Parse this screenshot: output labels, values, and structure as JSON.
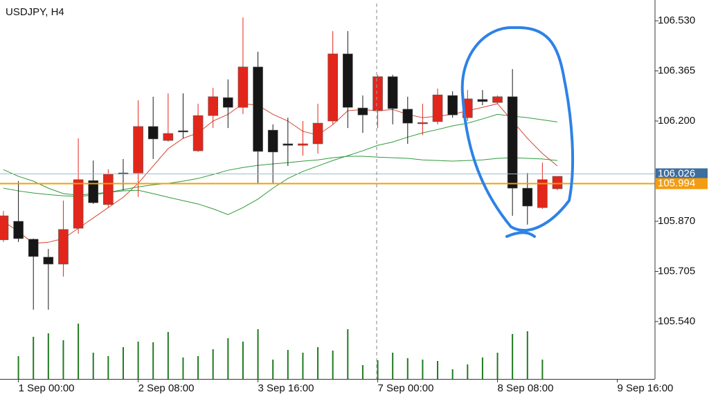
{
  "chart_data": {
    "type": "candlestick",
    "title": "USDJPY, H4",
    "up_color": "#e3261b",
    "down_color": "#161616",
    "xlim": [
      -0.23,
      43.52
    ],
    "xticks": [
      {
        "value": 1,
        "label": "1 Sep 00:00"
      },
      {
        "value": 9,
        "label": "2 Sep 08:00"
      },
      {
        "value": 17,
        "label": "3 Sep 16:00"
      },
      {
        "value": 25,
        "label": "7 Sep 00:00"
      },
      {
        "value": 33,
        "label": "8 Sep 08:00"
      },
      {
        "value": 41,
        "label": "9 Sep 16:00"
      }
    ],
    "ylim": [
      105.351,
      106.587
    ],
    "yticks": [
      {
        "value": 106.53,
        "label": "106.530"
      },
      106.365,
      {
        "value": 106.2,
        "label": "106.200"
      },
      {
        "value": 105.87,
        "label": "105.870"
      },
      105.705,
      {
        "value": 105.54,
        "label": "105.540"
      }
    ],
    "open": [
      105.809,
      105.87,
      105.811,
      105.752,
      105.729,
      105.847,
      106.004,
      105.925,
      106.029,
      106.029,
      106.182,
      106.136,
      106.168,
      106.102,
      106.218,
      106.277,
      106.245,
      106.378,
      106.17,
      106.125,
      106.12,
      106.125,
      106.2,
      106.421,
      106.243,
      106.234,
      106.346,
      106.239,
      106.191,
      106.198,
      106.284,
      106.211,
      106.271,
      106.261,
      106.28,
      105.979,
      105.915,
      105.977
    ],
    "high": [
      105.904,
      106.002,
      105.813,
      105.779,
      105.938,
      106.143,
      106.07,
      106.041,
      106.075,
      106.268,
      106.28,
      106.291,
      106.291,
      106.257,
      106.309,
      106.337,
      106.541,
      106.428,
      106.189,
      106.211,
      106.2,
      106.257,
      106.496,
      106.496,
      106.284,
      106.352,
      106.352,
      106.28,
      106.257,
      106.307,
      106.298,
      106.302,
      106.302,
      106.284,
      106.371,
      106.029,
      106.063,
      106.018
    ],
    "low": [
      105.802,
      105.802,
      105.579,
      105.579,
      105.688,
      105.829,
      105.927,
      105.915,
      105.972,
      105.95,
      106.075,
      106.132,
      106.143,
      106.098,
      106.177,
      106.177,
      106.223,
      105.995,
      105.995,
      106.052,
      106.086,
      106.093,
      106.189,
      106.177,
      106.161,
      106.177,
      106.189,
      106.125,
      106.154,
      106.189,
      106.211,
      106.2,
      106.252,
      106.257,
      105.888,
      105.859,
      105.911,
      105.972
    ],
    "close": [
      105.888,
      105.813,
      105.754,
      105.729,
      105.843,
      106.007,
      105.931,
      106.025,
      106.025,
      106.182,
      106.141,
      106.159,
      106.164,
      106.218,
      106.28,
      106.245,
      106.378,
      106.1,
      106.098,
      106.12,
      106.125,
      106.193,
      106.421,
      106.245,
      106.22,
      106.346,
      106.241,
      106.193,
      106.195,
      106.286,
      106.22,
      106.273,
      106.264,
      106.28,
      105.979,
      105.92,
      106.007,
      106.018
    ],
    "lines": [
      {
        "color": "#d4442f",
        "values": [
          105.87,
          105.836,
          105.797,
          105.801,
          105.813,
          105.847,
          105.881,
          105.915,
          105.949,
          105.995,
          106.052,
          106.109,
          106.143,
          106.161,
          106.2,
          106.222,
          106.257,
          106.252,
          106.222,
          106.2,
          106.166,
          106.154,
          106.188,
          106.234,
          106.238,
          106.234,
          106.238,
          106.222,
          106.211,
          106.216,
          106.222,
          106.234,
          106.245,
          106.257,
          106.2,
          106.143,
          106.093,
          106.052
        ]
      },
      {
        "color": "#2e9a3a",
        "values": [
          106.04,
          106.018,
          106.002,
          105.979,
          105.961,
          105.956,
          105.961,
          105.965,
          105.97,
          105.972,
          105.961,
          105.949,
          105.938,
          105.927,
          105.911,
          105.892,
          105.915,
          105.943,
          105.979,
          106.011,
          106.034,
          106.052,
          106.07,
          106.086,
          106.102,
          106.12,
          106.131,
          106.147,
          106.161,
          106.172,
          106.184,
          106.193,
          106.207,
          106.222,
          106.216,
          106.211,
          106.204,
          106.197
        ]
      },
      {
        "color": "#2e9a3a",
        "values": [
          105.979,
          105.97,
          105.963,
          105.958,
          105.954,
          105.952,
          105.956,
          105.965,
          105.974,
          105.983,
          105.99,
          105.995,
          106.002,
          106.011,
          106.024,
          106.038,
          106.047,
          106.054,
          106.059,
          106.063,
          106.068,
          106.072,
          106.079,
          106.084,
          106.084,
          106.081,
          106.079,
          106.077,
          106.072,
          106.07,
          106.068,
          106.07,
          106.072,
          106.077,
          106.079,
          106.077,
          106.075,
          106.07
        ]
      }
    ],
    "volume": {
      "color": "#1f7a1f",
      "ylim": [
        0,
        543
      ],
      "values": [
        null,
        33,
        61,
        66,
        56,
        80,
        38,
        33,
        46,
        54,
        53,
        68,
        31,
        33,
        43,
        59,
        54,
        72,
        28,
        42,
        38,
        46,
        41,
        72,
        20,
        27,
        38,
        30,
        28,
        26,
        14,
        21,
        31,
        38,
        65,
        69,
        28,
        null
      ]
    },
    "price_lines": [
      {
        "value": 106.026,
        "color": "#3d6e9c",
        "line_color": "#9bbccf"
      },
      {
        "value": 105.994,
        "color": "#f39c12",
        "line_color": "#f0a000"
      }
    ]
  }
}
